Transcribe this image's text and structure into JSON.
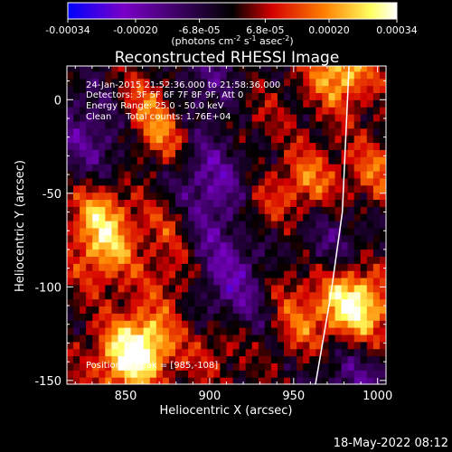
{
  "chart_data": {
    "type": "heatmap",
    "title": "Reconstructed RHESSI Image",
    "xlabel": "Heliocentric X (arcsec)",
    "ylabel": "Heliocentric Y (arcsec)",
    "xlim": [
      815,
      1005
    ],
    "ylim": [
      -152,
      18
    ],
    "xticks": [
      850,
      900,
      950,
      1000
    ],
    "yticks": [
      0,
      -50,
      -100,
      -150
    ],
    "colorbar": {
      "label_pre": "(photons cm",
      "label_sup1": "-2",
      "label_mid1": " s",
      "label_sup2": "-1",
      "label_mid2": " asec",
      "label_sup3": "-2",
      "label_post": ")",
      "range": [
        -0.00034,
        0.00034
      ],
      "colors": [
        "#0000ff",
        "#7a00c8",
        "#000000",
        "#d40000",
        "#ff7f00",
        "#ffff60",
        "#ffffff"
      ],
      "ticks_row1": [
        "-0.00034",
        "-0.00020",
        "-6.8e-05",
        "6.8e-05",
        "0.00020",
        "0.00034"
      ],
      "ticks_row1_values": [
        -0.00034,
        -0.0002,
        -6.8e-05,
        6.8e-05,
        0.0002,
        0.00034
      ]
    },
    "annotations": [
      "24-Jan-2015 21:52:36.000 to 21:58:36.000",
      "Detectors: 3F 5F 6F 7F 8F 9F, Att 0",
      "Energy Range: 25.0 - 50.0 keV",
      "Clean     Total counts: 1.76E+04"
    ],
    "peak_label": "Position of Peak = [985,-108]",
    "peak": {
      "x": 985,
      "y": -108,
      "value": 0.00034
    },
    "limb_curve": [
      [
        983,
        18
      ],
      [
        979,
        -60
      ],
      [
        972,
        -105
      ],
      [
        963,
        -152
      ]
    ],
    "sources": [
      {
        "x": 984,
        "y": -107,
        "value": 0.00034
      },
      {
        "x": 958,
        "y": -45,
        "value": 0.0002
      },
      {
        "x": 835,
        "y": -60,
        "value": 0.00022
      },
      {
        "x": 838,
        "y": -82,
        "value": 0.00018
      },
      {
        "x": 872,
        "y": -20,
        "value": 0.0002
      },
      {
        "x": 862,
        "y": 0,
        "value": 0.00016
      },
      {
        "x": 876,
        "y": -65,
        "value": 0.00015
      },
      {
        "x": 880,
        "y": -95,
        "value": 0.00012
      },
      {
        "x": 862,
        "y": -130,
        "value": 0.00026
      },
      {
        "x": 848,
        "y": -140,
        "value": 0.0002
      },
      {
        "x": 928,
        "y": -60,
        "value": 0.00016
      },
      {
        "x": 945,
        "y": -95,
        "value": 0.00014
      },
      {
        "x": 955,
        "y": -120,
        "value": 0.00016
      },
      {
        "x": 978,
        "y": 15,
        "value": 0.00025
      },
      {
        "x": 998,
        "y": -40,
        "value": 0.00015
      },
      {
        "x": 1000,
        "y": -120,
        "value": 0.00012
      },
      {
        "x": 905,
        "y": -130,
        "value": 0.00012
      },
      {
        "x": 925,
        "y": -10,
        "value": 8e-05
      }
    ],
    "sinks": [
      {
        "x": 900,
        "y": -50,
        "value": -0.0002
      },
      {
        "x": 915,
        "y": -100,
        "value": -0.00018
      },
      {
        "x": 830,
        "y": -20,
        "value": -0.00015
      },
      {
        "x": 895,
        "y": 10,
        "value": -0.00012
      },
      {
        "x": 970,
        "y": -75,
        "value": -0.00012
      },
      {
        "x": 990,
        "y": -150,
        "value": -0.00014
      }
    ]
  },
  "timestamp": "18-May-2022 08:12"
}
